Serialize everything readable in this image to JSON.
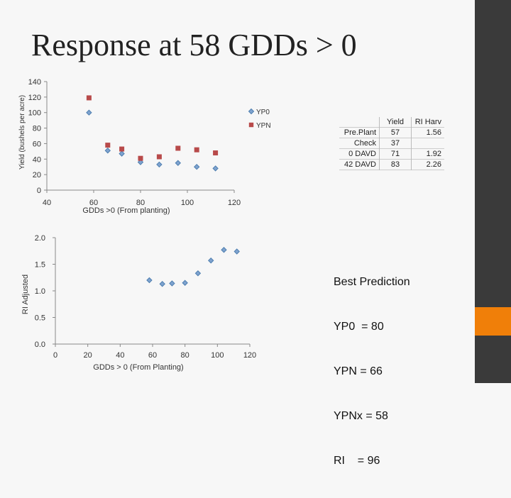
{
  "title": "Response at 58 GDDs > 0",
  "colors": {
    "ypo": "#7fa3cf",
    "ypo_stroke": "#4f7fb0",
    "ypn": "#b84a4a",
    "sidebar": "#3a3a3a",
    "accent": "#f07f09"
  },
  "table": {
    "headers": [
      "",
      "Yield",
      "RI Harv"
    ],
    "rows": [
      {
        "label": "Pre.Plant",
        "yield": "57",
        "ri": "1.56"
      },
      {
        "label": "Check",
        "yield": "37",
        "ri": ""
      },
      {
        "label": "0 DAVD",
        "yield": "71",
        "ri": "1.92"
      },
      {
        "label": "42 DAVD",
        "yield": "83",
        "ri": "2.26"
      }
    ]
  },
  "prediction": {
    "heading": "Best Prediction",
    "lines": [
      "YP0  = 80",
      "YPN = 66",
      "YPNx = 58",
      "RI    = 96"
    ]
  },
  "chart_data": [
    {
      "type": "scatter",
      "title": "",
      "xlabel": "GDDs >0 (From planting)",
      "ylabel": "Yield (bushels per acre)",
      "xlim": [
        40,
        120
      ],
      "ylim": [
        0,
        140
      ],
      "xticks": [
        "40",
        "60",
        "80",
        "100",
        "120"
      ],
      "yticks": [
        "0",
        "20",
        "40",
        "60",
        "80",
        "100",
        "120",
        "140"
      ],
      "legend": "right",
      "series": [
        {
          "name": "YP0",
          "marker": "diamond",
          "points": [
            [
              58,
              100
            ],
            [
              66,
              51
            ],
            [
              72,
              47
            ],
            [
              80,
              36
            ],
            [
              88,
              33
            ],
            [
              96,
              35
            ],
            [
              104,
              30
            ],
            [
              112,
              28
            ]
          ]
        },
        {
          "name": "YPN",
          "marker": "square",
          "points": [
            [
              58,
              119
            ],
            [
              66,
              58
            ],
            [
              72,
              53
            ],
            [
              80,
              41
            ],
            [
              88,
              43
            ],
            [
              96,
              54
            ],
            [
              104,
              52
            ],
            [
              112,
              48
            ]
          ]
        }
      ]
    },
    {
      "type": "scatter",
      "title": "",
      "xlabel": "GDDs > 0 (From Planting)",
      "ylabel": "RI Adjusted",
      "xlim": [
        0,
        120
      ],
      "ylim": [
        0.0,
        2.0
      ],
      "xticks": [
        "0",
        "20",
        "40",
        "60",
        "80",
        "100",
        "120"
      ],
      "yticks": [
        "0.0",
        "0.5",
        "1.0",
        "1.5",
        "2.0"
      ],
      "series": [
        {
          "marker": "diamond",
          "points": [
            [
              58,
              1.2
            ],
            [
              66,
              1.13
            ],
            [
              72,
              1.14
            ],
            [
              80,
              1.15
            ],
            [
              88,
              1.33
            ],
            [
              96,
              1.57
            ],
            [
              104,
              1.77
            ],
            [
              112,
              1.74
            ]
          ]
        }
      ]
    }
  ]
}
